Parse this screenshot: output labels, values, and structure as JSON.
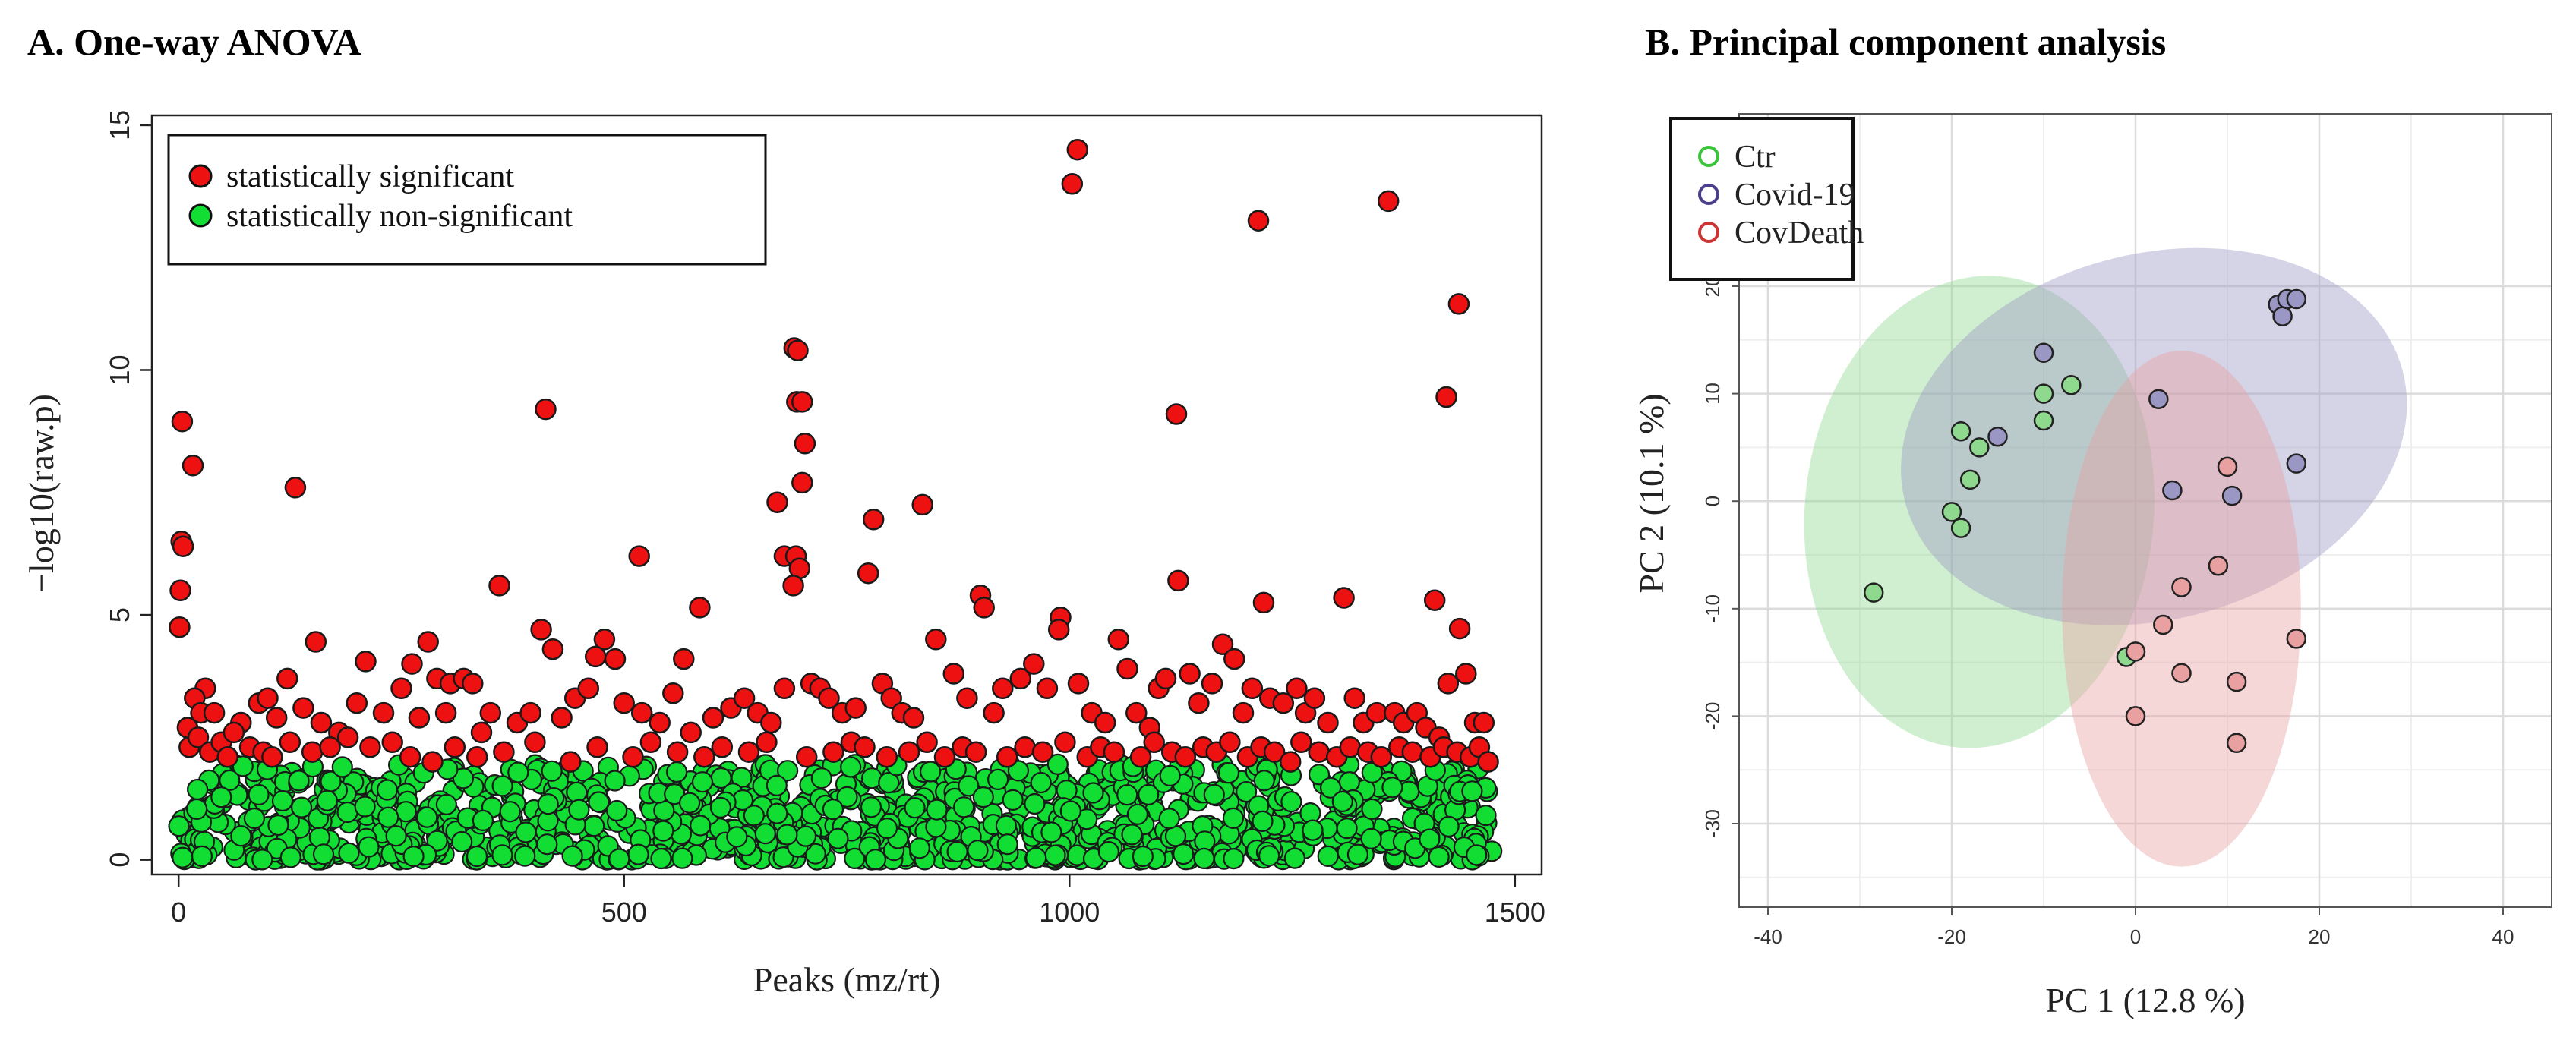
{
  "chart_data": [
    {
      "panel": "A",
      "type": "scatter",
      "title": "A. One-way ANOVA",
      "xlabel": "Peaks (mz/rt)",
      "ylabel": "−log10(raw.p)",
      "xlim": [
        -30,
        1530
      ],
      "ylim": [
        -0.3,
        15.2
      ],
      "xticks": [
        0,
        500,
        1000,
        1500
      ],
      "yticks": [
        0,
        5,
        10,
        15
      ],
      "grid": false,
      "legend_position": "top-left",
      "significance_threshold": 2,
      "series": [
        {
          "name": "statistically significant",
          "color": "#ee1111",
          "points": [
            [
              4,
              8.95
            ],
            [
              3,
              6.5
            ],
            [
              5,
              6.4
            ],
            [
              2,
              5.5
            ],
            [
              1,
              4.75
            ],
            [
              16,
              8.05
            ],
            [
              131,
              7.6
            ],
            [
              412,
              9.2
            ],
            [
              691,
              10.45
            ],
            [
              695,
              10.4
            ],
            [
              694,
              9.35
            ],
            [
              700,
              9.35
            ],
            [
              703,
              8.5
            ],
            [
              680,
              6.2
            ],
            [
              693,
              6.2
            ],
            [
              697,
              5.95
            ],
            [
              690,
              5.6
            ],
            [
              672,
              7.3
            ],
            [
              700,
              7.7
            ],
            [
              780,
              6.95
            ],
            [
              835,
              7.25
            ],
            [
              774,
              5.85
            ],
            [
              517,
              6.2
            ],
            [
              1003,
              13.8
            ],
            [
              1009,
              14.5
            ],
            [
              1212,
              13.05
            ],
            [
              1358,
              13.45
            ],
            [
              1437,
              11.35
            ],
            [
              1423,
              9.45
            ],
            [
              1120,
              9.1
            ],
            [
              1122,
              5.7
            ],
            [
              1218,
              5.25
            ],
            [
              1308,
              5.35
            ],
            [
              1410,
              5.3
            ],
            [
              1438,
              4.72
            ],
            [
              900,
              5.4
            ],
            [
              904,
              5.15
            ],
            [
              990,
              4.95
            ],
            [
              988,
              4.7
            ],
            [
              585,
              5.15
            ],
            [
              360,
              5.6
            ],
            [
              407,
              4.7
            ],
            [
              420,
              4.3
            ],
            [
              478,
              4.5
            ],
            [
              468,
              4.15
            ],
            [
              490,
              4.1
            ],
            [
              567,
              4.1
            ],
            [
              154,
              4.45
            ],
            [
              122,
              3.7
            ],
            [
              210,
              4.05
            ],
            [
              262,
              4.0
            ],
            [
              280,
              4.45
            ],
            [
              290,
              3.7
            ],
            [
              305,
              3.6
            ],
            [
              320,
              3.7
            ],
            [
              330,
              3.6
            ],
            [
              30,
              3.5
            ],
            [
              18,
              3.3
            ],
            [
              25,
              3.0
            ],
            [
              40,
              3.0
            ],
            [
              70,
              2.8
            ],
            [
              90,
              3.2
            ],
            [
              100,
              3.3
            ],
            [
              110,
              2.9
            ],
            [
              140,
              3.1
            ],
            [
              160,
              2.8
            ],
            [
              180,
              2.6
            ],
            [
              200,
              3.2
            ],
            [
              230,
              3.0
            ],
            [
              250,
              3.5
            ],
            [
              270,
              2.9
            ],
            [
              300,
              3.0
            ],
            [
              340,
              2.6
            ],
            [
              350,
              3.0
            ],
            [
              380,
              2.8
            ],
            [
              395,
              3.0
            ],
            [
              430,
              2.9
            ],
            [
              445,
              3.3
            ],
            [
              460,
              3.5
            ],
            [
              500,
              3.2
            ],
            [
              520,
              3.0
            ],
            [
              540,
              2.8
            ],
            [
              555,
              3.4
            ],
            [
              575,
              2.6
            ],
            [
              600,
              2.9
            ],
            [
              620,
              3.1
            ],
            [
              635,
              3.3
            ],
            [
              650,
              3.0
            ],
            [
              665,
              2.8
            ],
            [
              680,
              3.5
            ],
            [
              710,
              3.6
            ],
            [
              720,
              3.5
            ],
            [
              730,
              3.3
            ],
            [
              745,
              3.0
            ],
            [
              760,
              3.1
            ],
            [
              790,
              3.6
            ],
            [
              800,
              3.3
            ],
            [
              812,
              3.0
            ],
            [
              825,
              2.9
            ],
            [
              850,
              4.5
            ],
            [
              870,
              3.8
            ],
            [
              885,
              3.3
            ],
            [
              915,
              3.0
            ],
            [
              925,
              3.5
            ],
            [
              945,
              3.7
            ],
            [
              960,
              4.0
            ],
            [
              975,
              3.5
            ],
            [
              1010,
              3.6
            ],
            [
              1025,
              3.0
            ],
            [
              1040,
              2.8
            ],
            [
              1055,
              4.5
            ],
            [
              1065,
              3.9
            ],
            [
              1075,
              3.0
            ],
            [
              1090,
              2.7
            ],
            [
              1100,
              3.5
            ],
            [
              1108,
              3.7
            ],
            [
              1135,
              3.8
            ],
            [
              1145,
              3.2
            ],
            [
              1160,
              3.6
            ],
            [
              1172,
              4.4
            ],
            [
              1185,
              4.1
            ],
            [
              1195,
              3.0
            ],
            [
              1205,
              3.5
            ],
            [
              1225,
              3.3
            ],
            [
              1240,
              3.2
            ],
            [
              1255,
              3.5
            ],
            [
              1265,
              3.0
            ],
            [
              1275,
              3.3
            ],
            [
              1290,
              2.8
            ],
            [
              1320,
              3.3
            ],
            [
              1330,
              2.8
            ],
            [
              1345,
              3.0
            ],
            [
              1365,
              3.0
            ],
            [
              1375,
              2.8
            ],
            [
              1390,
              3.0
            ],
            [
              1400,
              2.7
            ],
            [
              1415,
              2.5
            ],
            [
              1425,
              3.6
            ],
            [
              1445,
              3.8
            ],
            [
              1455,
              2.8
            ],
            [
              1465,
              2.8
            ],
            [
              10,
              2.7
            ],
            [
              12,
              2.3
            ],
            [
              22,
              2.5
            ],
            [
              35,
              2.2
            ],
            [
              48,
              2.4
            ],
            [
              55,
              2.1
            ],
            [
              62,
              2.6
            ],
            [
              80,
              2.3
            ],
            [
              95,
              2.2
            ],
            [
              105,
              2.1
            ],
            [
              125,
              2.4
            ],
            [
              150,
              2.2
            ],
            [
              170,
              2.3
            ],
            [
              190,
              2.5
            ],
            [
              215,
              2.3
            ],
            [
              240,
              2.4
            ],
            [
              260,
              2.1
            ],
            [
              285,
              2.0
            ],
            [
              310,
              2.3
            ],
            [
              335,
              2.1
            ],
            [
              365,
              2.2
            ],
            [
              400,
              2.4
            ],
            [
              440,
              2.0
            ],
            [
              470,
              2.3
            ],
            [
              510,
              2.1
            ],
            [
              530,
              2.4
            ],
            [
              560,
              2.2
            ],
            [
              590,
              2.1
            ],
            [
              610,
              2.3
            ],
            [
              640,
              2.2
            ],
            [
              660,
              2.4
            ],
            [
              705,
              2.1
            ],
            [
              735,
              2.2
            ],
            [
              755,
              2.4
            ],
            [
              770,
              2.3
            ],
            [
              795,
              2.1
            ],
            [
              820,
              2.2
            ],
            [
              840,
              2.4
            ],
            [
              860,
              2.1
            ],
            [
              880,
              2.3
            ],
            [
              895,
              2.2
            ],
            [
              930,
              2.1
            ],
            [
              950,
              2.3
            ],
            [
              970,
              2.2
            ],
            [
              995,
              2.4
            ],
            [
              1020,
              2.1
            ],
            [
              1035,
              2.3
            ],
            [
              1050,
              2.2
            ],
            [
              1080,
              2.1
            ],
            [
              1095,
              2.4
            ],
            [
              1115,
              2.2
            ],
            [
              1130,
              2.1
            ],
            [
              1150,
              2.3
            ],
            [
              1165,
              2.2
            ],
            [
              1180,
              2.4
            ],
            [
              1200,
              2.1
            ],
            [
              1215,
              2.3
            ],
            [
              1230,
              2.2
            ],
            [
              1248,
              2.0
            ],
            [
              1260,
              2.4
            ],
            [
              1280,
              2.2
            ],
            [
              1300,
              2.1
            ],
            [
              1315,
              2.3
            ],
            [
              1335,
              2.2
            ],
            [
              1350,
              2.1
            ],
            [
              1370,
              2.3
            ],
            [
              1385,
              2.2
            ],
            [
              1405,
              2.1
            ],
            [
              1420,
              2.3
            ],
            [
              1435,
              2.2
            ],
            [
              1450,
              2.1
            ],
            [
              1460,
              2.3
            ],
            [
              1470,
              2.0
            ]
          ]
        },
        {
          "name": "statistically non-significant",
          "color": "#11dd33",
          "generated_count": 1150,
          "note_y_range": [
            0,
            1.95
          ]
        }
      ]
    },
    {
      "panel": "B",
      "type": "scatter",
      "title": "B. Principal component analysis",
      "xlabel": "PC 1 (12.8 %)",
      "ylabel": "PC 2 (10.1 %)",
      "xlim": [
        -40,
        40
      ],
      "ylim": [
        -38,
        25
      ],
      "xticks": [
        -40,
        -20,
        0,
        20,
        40
      ],
      "yticks": [
        -30,
        -20,
        -10,
        0,
        10,
        20
      ],
      "grid": true,
      "legend_position": "top-left",
      "series": [
        {
          "name": "Ctr",
          "color": "#39c439",
          "fill": "#8fd98f",
          "ellipse": {
            "cx": -17,
            "cy": -1,
            "rx": 19,
            "ry": 22,
            "angle": -5
          },
          "points": [
            [
              -28.5,
              -8.5
            ],
            [
              -20,
              -1
            ],
            [
              -19,
              -2.5
            ],
            [
              -19,
              6.5
            ],
            [
              -18,
              2
            ],
            [
              -17,
              5
            ],
            [
              -10,
              10
            ],
            [
              -10,
              7.5
            ],
            [
              -7,
              10.8
            ],
            [
              -1,
              -14.5
            ]
          ]
        },
        {
          "name": "Covid-19",
          "color": "#4b3f8c",
          "fill": "#9b97c4",
          "ellipse": {
            "cx": 2,
            "cy": 6,
            "rx": 28,
            "ry": 17,
            "angle": 15
          },
          "points": [
            [
              -10,
              13.8
            ],
            [
              -15,
              6
            ],
            [
              2.5,
              9.5
            ],
            [
              4,
              1
            ],
            [
              10.5,
              0.5
            ],
            [
              15.5,
              18.3
            ],
            [
              16,
              17.2
            ],
            [
              16.5,
              18.8
            ],
            [
              17.5,
              18.8
            ],
            [
              17.5,
              3.5
            ]
          ]
        },
        {
          "name": "CovDeath",
          "color": "#cc3333",
          "fill": "#e8a0a0",
          "ellipse": {
            "cx": 5,
            "cy": -10,
            "rx": 13,
            "ry": 24,
            "angle": 0
          },
          "points": [
            [
              10,
              3.2
            ],
            [
              9,
              -6
            ],
            [
              5,
              -8
            ],
            [
              3,
              -11.5
            ],
            [
              0,
              -14
            ],
            [
              0,
              -20
            ],
            [
              5,
              -16
            ],
            [
              11,
              -16.8
            ],
            [
              11,
              -22.5
            ],
            [
              17.5,
              -12.8
            ]
          ]
        }
      ]
    }
  ]
}
